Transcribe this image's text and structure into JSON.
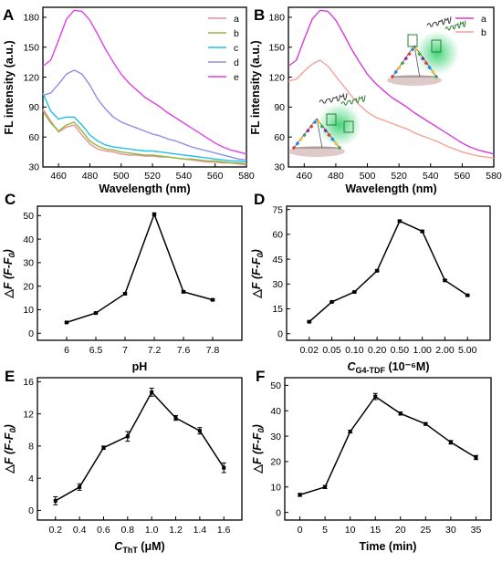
{
  "colors": {
    "a_pink": "#f08a96",
    "b_green": "#8fba3c",
    "c_cyan": "#1ec1e8",
    "d_lavender": "#8e8ee6",
    "e_magenta": "#e040e6",
    "B_a_magenta": "#d83ad8",
    "B_b_salmon": "#f4a296",
    "black": "#000000",
    "glow_green": "#2fd06a"
  },
  "chart_data": [
    {
      "id": "A",
      "letter": "A",
      "type": "line",
      "xlabel": "Wavelength (nm)",
      "ylabel": "FL intensity (a.u.)",
      "xlim": [
        450,
        580
      ],
      "ylim": [
        30,
        190
      ],
      "xticks": [
        460,
        480,
        500,
        520,
        540,
        560,
        580
      ],
      "yticks": [
        30,
        60,
        90,
        120,
        150,
        180
      ],
      "legend": "top-right",
      "x": [
        450,
        455,
        460,
        465,
        470,
        475,
        480,
        485,
        490,
        495,
        500,
        505,
        510,
        515,
        520,
        525,
        530,
        535,
        540,
        545,
        550,
        555,
        560,
        565,
        570,
        575,
        580
      ],
      "series": [
        {
          "name": "a",
          "color": "#f08a96",
          "values": [
            88,
            76,
            65,
            70,
            72,
            62,
            53,
            48,
            46,
            45,
            43,
            42,
            42,
            41,
            41,
            40,
            40,
            39,
            38,
            37,
            36,
            35,
            35,
            34,
            34,
            33,
            32
          ]
        },
        {
          "name": "b",
          "color": "#8fba3c",
          "values": [
            86,
            74,
            66,
            72,
            75,
            66,
            56,
            51,
            48,
            47,
            45,
            44,
            43,
            42,
            42,
            41,
            40,
            39,
            38,
            38,
            37,
            36,
            36,
            35,
            34,
            34,
            33
          ]
        },
        {
          "name": "c",
          "color": "#1ec1e8",
          "values": [
            104,
            86,
            78,
            80,
            80,
            72,
            62,
            56,
            52,
            50,
            49,
            48,
            47,
            46,
            46,
            45,
            44,
            43,
            42,
            41,
            40,
            39,
            38,
            37,
            36,
            36,
            35
          ]
        },
        {
          "name": "d",
          "color": "#8e8ee6",
          "values": [
            102,
            104,
            113,
            123,
            127,
            123,
            112,
            98,
            88,
            80,
            75,
            72,
            69,
            66,
            63,
            61,
            58,
            56,
            53,
            50,
            48,
            46,
            44,
            42,
            40,
            38,
            37
          ]
        },
        {
          "name": "e",
          "color": "#e040e6",
          "values": [
            131,
            137,
            157,
            178,
            187,
            186,
            177,
            163,
            148,
            135,
            123,
            114,
            107,
            100,
            95,
            90,
            84,
            79,
            74,
            69,
            64,
            59,
            54,
            50,
            47,
            45,
            43
          ]
        }
      ]
    },
    {
      "id": "B",
      "letter": "B",
      "type": "line",
      "xlabel": "Wavelength (nm)",
      "ylabel": "FL intensity (a.u.)",
      "xlim": [
        450,
        580
      ],
      "ylim": [
        30,
        190
      ],
      "xticks": [
        460,
        480,
        500,
        520,
        540,
        560,
        580
      ],
      "yticks": [
        30,
        60,
        90,
        120,
        150,
        180
      ],
      "legend": "top-right",
      "x": [
        450,
        455,
        460,
        465,
        470,
        475,
        480,
        485,
        490,
        495,
        500,
        505,
        510,
        515,
        520,
        525,
        530,
        535,
        540,
        545,
        550,
        555,
        560,
        565,
        570,
        575,
        580
      ],
      "series": [
        {
          "name": "a",
          "color": "#d83ad8",
          "values": [
            131,
            137,
            158,
            178,
            187,
            186,
            177,
            163,
            148,
            135,
            123,
            114,
            107,
            100,
            95,
            90,
            84,
            79,
            74,
            69,
            64,
            59,
            54,
            50,
            47,
            45,
            43
          ]
        },
        {
          "name": "b",
          "color": "#f4a296",
          "values": [
            116,
            118,
            126,
            133,
            137,
            131,
            121,
            111,
            101,
            92,
            85,
            80,
            77,
            74,
            71,
            68,
            64,
            61,
            58,
            55,
            51,
            48,
            45,
            43,
            41,
            40,
            39
          ]
        }
      ]
    },
    {
      "id": "C",
      "letter": "C",
      "type": "line",
      "xlabel": "pH",
      "ylabel": "△F (F-F0)",
      "categories": [
        "6",
        "6.5",
        "7",
        "7.2",
        "7.6",
        "7.8"
      ],
      "yticks": [
        0,
        10,
        20,
        30,
        40,
        50
      ],
      "ylim": [
        -3,
        54
      ],
      "series": [
        {
          "name": "",
          "color": "#000000",
          "values": [
            4.6,
            8.6,
            16.8,
            50.6,
            17.6,
            14.2
          ],
          "errors": [
            0.3,
            0.3,
            0.4,
            0.5,
            0.4,
            0.3
          ]
        }
      ]
    },
    {
      "id": "D",
      "letter": "D",
      "type": "line",
      "xlabel_main": "C",
      "xlabel_sub": "G4-TDF",
      "xlabel_tail": " (10⁻⁶M)",
      "ylabel": "△F (F-F0)",
      "categories": [
        "0.02",
        "0.05",
        "0.10",
        "0.20",
        "0.50",
        "1.00",
        "2.00",
        "5.00"
      ],
      "yticks": [
        0,
        15,
        30,
        45,
        60,
        75
      ],
      "ylim": [
        -4,
        77
      ],
      "series": [
        {
          "name": "",
          "color": "#000000",
          "values": [
            7.2,
            19.2,
            25.2,
            38.0,
            68.0,
            61.8,
            32.2,
            23.2
          ],
          "errors": [
            0.4,
            0.4,
            0.4,
            0.5,
            0.6,
            0.5,
            0.5,
            0.4
          ]
        }
      ]
    },
    {
      "id": "E",
      "letter": "E",
      "type": "line",
      "xlabel_main": "C",
      "xlabel_sub": "ThT",
      "xlabel_tail": " (μM)",
      "ylabel": "△F (F-F0)",
      "x": [
        0.2,
        0.4,
        0.6,
        0.8,
        1.0,
        1.2,
        1.4,
        1.6
      ],
      "xlim": [
        0.05,
        1.75
      ],
      "xticks": [
        0.2,
        0.4,
        0.6,
        0.8,
        1.0,
        1.2,
        1.4,
        1.6
      ],
      "xtick_labels": [
        "0.2",
        "0.4",
        "0.6",
        "0.8",
        "1.0",
        "1.2",
        "1.4",
        "1.6"
      ],
      "yticks": [
        0,
        4,
        8,
        12,
        16
      ],
      "ylim": [
        -1.2,
        16.5
      ],
      "series": [
        {
          "name": "",
          "color": "#000000",
          "values": [
            1.2,
            2.9,
            7.8,
            9.2,
            14.7,
            11.5,
            9.9,
            5.3
          ],
          "errors": [
            0.5,
            0.4,
            0.2,
            0.6,
            0.5,
            0.3,
            0.4,
            0.6
          ]
        }
      ]
    },
    {
      "id": "F",
      "letter": "F",
      "type": "line",
      "xlabel": "Time (min)",
      "ylabel": "△F (F-F0)",
      "x": [
        0,
        5,
        10,
        15,
        20,
        25,
        30,
        35
      ],
      "xlim": [
        -3,
        38
      ],
      "xticks": [
        0,
        5,
        10,
        15,
        20,
        25,
        30,
        35
      ],
      "xtick_labels": [
        "0",
        "5",
        "10",
        "15",
        "20",
        "25",
        "30",
        "35"
      ],
      "yticks": [
        0,
        10,
        20,
        30,
        40,
        50
      ],
      "ylim": [
        -3,
        53
      ],
      "series": [
        {
          "name": "",
          "color": "#000000",
          "values": [
            6.9,
            10.0,
            31.8,
            45.6,
            38.9,
            34.8,
            27.6,
            21.6
          ],
          "errors": [
            0.6,
            0.6,
            0.5,
            1.2,
            0.6,
            0.5,
            0.7,
            0.8
          ]
        }
      ]
    }
  ]
}
